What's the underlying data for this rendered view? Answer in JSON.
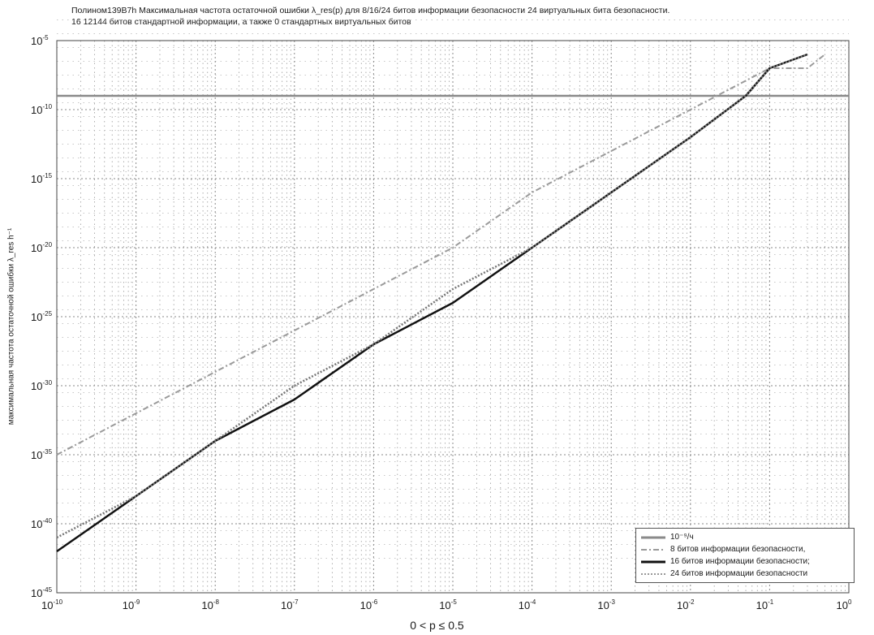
{
  "title": {
    "line1": "Полином139B7h  Максимальная частота остаточной ошибки λ_res(p) для 8/16/24 битов информации безопасности  24 виртуальных бита безопасности.",
    "line2": "16  12144 битов стандартной информации, а также 0 стандартных виртуальных битов"
  },
  "chart_data": {
    "type": "line",
    "title": "Полином139B7h  Максимальная частота остаточной ошибки λ_res(p) для 8/16/24 битов информации безопасности  24 виртуальных бита безопасности. 16  12144 битов стандартной информации, а также 0 стандартных виртуальных битов",
    "xlabel": "0 < p ≤ 0.5",
    "ylabel": "максимальная частота остаточной ошибки λ_res h⁻¹",
    "x_scale": "log",
    "y_scale": "log",
    "xlim": [
      1e-10,
      1
    ],
    "ylim": [
      1e-45,
      1e-05
    ],
    "x_ticks": [
      {
        "base": "10",
        "exp": "-10"
      },
      {
        "base": "10",
        "exp": "-9"
      },
      {
        "base": "10",
        "exp": "-8"
      },
      {
        "base": "10",
        "exp": "-7"
      },
      {
        "base": "10",
        "exp": "-6"
      },
      {
        "base": "10",
        "exp": "-5"
      },
      {
        "base": "10",
        "exp": "-4"
      },
      {
        "base": "10",
        "exp": "-3"
      },
      {
        "base": "10",
        "exp": "-2"
      },
      {
        "base": "10",
        "exp": "-1"
      },
      {
        "base": "10",
        "exp": "0"
      }
    ],
    "y_ticks": [
      {
        "base": "10",
        "exp": "-5"
      },
      {
        "base": "10",
        "exp": "-10"
      },
      {
        "base": "10",
        "exp": "-15"
      },
      {
        "base": "10",
        "exp": "-20"
      },
      {
        "base": "10",
        "exp": "-25"
      },
      {
        "base": "10",
        "exp": "-30"
      },
      {
        "base": "10",
        "exp": "-35"
      },
      {
        "base": "10",
        "exp": "-40"
      },
      {
        "base": "10",
        "exp": "-45"
      }
    ],
    "grid": true,
    "legend_position": "bottom-right",
    "reference_lines": [
      {
        "y": 1e-09,
        "label": "10⁻⁹/ч"
      }
    ],
    "series": [
      {
        "name": "8 битов информации безопасности,",
        "style": "dashdot",
        "color": "#9a9a9a",
        "x": [
          1e-10,
          1e-09,
          1e-08,
          1e-07,
          1e-06,
          1e-05,
          0.0001,
          0.001,
          0.01,
          0.1,
          0.3,
          0.5
        ],
        "y": [
          1e-35,
          1e-32,
          1e-29,
          1e-26,
          1e-23,
          1e-20,
          1e-16,
          1e-13,
          1e-10,
          1e-07,
          1e-07,
          1e-06
        ]
      },
      {
        "name": "16 битов информации безопасности;",
        "style": "solid",
        "color": "#111111",
        "x": [
          1e-10,
          1e-09,
          1e-08,
          1e-07,
          1e-06,
          1e-05,
          0.0001,
          0.001,
          0.01,
          0.05,
          0.1,
          0.3
        ],
        "y": [
          1e-42,
          1e-38,
          1e-34,
          1e-31,
          1e-27,
          1e-24,
          1e-20,
          1e-16,
          1e-12,
          1e-09,
          1e-07,
          1e-06
        ]
      },
      {
        "name": "24 битов информации безопасности",
        "style": "dotted",
        "color": "#777777",
        "x": [
          1e-10,
          1e-09,
          1e-08,
          1e-07,
          1e-06,
          1e-05,
          0.0001,
          0.001,
          0.01,
          0.05,
          0.1,
          0.3
        ],
        "y": [
          1e-41,
          1e-38,
          1e-34,
          1e-30,
          1e-27,
          1e-23,
          1e-20,
          1e-16,
          1e-12,
          1e-09,
          1e-07,
          1e-06
        ]
      }
    ]
  },
  "legend": [
    {
      "label": "10⁻⁹/ч",
      "style": "solid-gray",
      "color": "#8a8a8a"
    },
    {
      "label": "8 битов информации безопасности,",
      "style": "dashdot",
      "color": "#9a9a9a"
    },
    {
      "label": "16 битов информации безопасности;",
      "style": "solid",
      "color": "#111111"
    },
    {
      "label": "24 битов информации безопасности",
      "style": "dotted",
      "color": "#777777"
    }
  ]
}
